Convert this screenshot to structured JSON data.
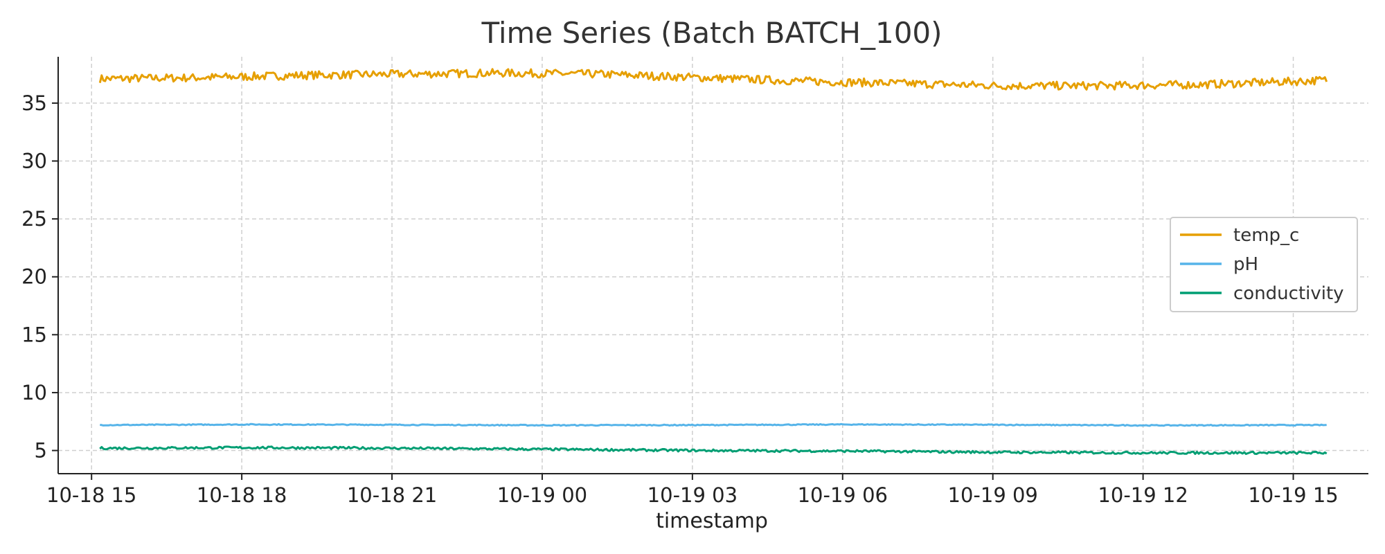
{
  "chart_data": {
    "type": "line",
    "title": "Time Series (Batch BATCH_100)",
    "xlabel": "timestamp",
    "ylabel": "",
    "x_ticks": [
      "10-18 15",
      "10-18 18",
      "10-18 21",
      "10-19 00",
      "10-19 03",
      "10-19 06",
      "10-19 09",
      "10-19 12",
      "10-19 15"
    ],
    "y_ticks": [
      5,
      10,
      15,
      20,
      25,
      30,
      35
    ],
    "x_range": [
      "2023-10-18 14:20",
      "2023-10-19 16:30"
    ],
    "ylim": [
      3,
      39
    ],
    "grid": true,
    "legend_position": "center-right",
    "series": [
      {
        "name": "temp_c",
        "color": "#E69F00",
        "x": [
          "2023-10-18 15:10",
          "2023-10-18 17:10",
          "2023-10-18 19:10",
          "2023-10-18 21:10",
          "2023-10-18 23:10",
          "2023-10-19 01:10",
          "2023-10-19 03:10",
          "2023-10-19 05:10",
          "2023-10-19 07:10",
          "2023-10-19 09:10",
          "2023-10-19 11:10",
          "2023-10-19 13:10",
          "2023-10-19 15:10",
          "2023-10-19 15:40"
        ],
        "values": [
          37.1,
          37.2,
          37.4,
          37.5,
          37.6,
          37.5,
          37.2,
          36.9,
          36.7,
          36.5,
          36.5,
          36.6,
          36.9,
          37.0
        ]
      },
      {
        "name": "pH",
        "color": "#56B4E9",
        "x": [
          "2023-10-18 15:10",
          "2023-10-18 18:10",
          "2023-10-18 21:10",
          "2023-10-19 00:10",
          "2023-10-19 03:10",
          "2023-10-19 06:10",
          "2023-10-19 09:10",
          "2023-10-19 12:10",
          "2023-10-19 15:40"
        ],
        "values": [
          7.2,
          7.25,
          7.22,
          7.18,
          7.2,
          7.25,
          7.22,
          7.17,
          7.2
        ]
      },
      {
        "name": "conductivity",
        "color": "#009E73",
        "x": [
          "2023-10-18 15:10",
          "2023-10-18 18:10",
          "2023-10-18 21:10",
          "2023-10-19 00:10",
          "2023-10-19 03:10",
          "2023-10-19 06:10",
          "2023-10-19 09:10",
          "2023-10-19 12:10",
          "2023-10-19 15:40"
        ],
        "values": [
          5.2,
          5.25,
          5.2,
          5.1,
          5.0,
          4.95,
          4.85,
          4.8,
          4.8
        ]
      }
    ]
  }
}
